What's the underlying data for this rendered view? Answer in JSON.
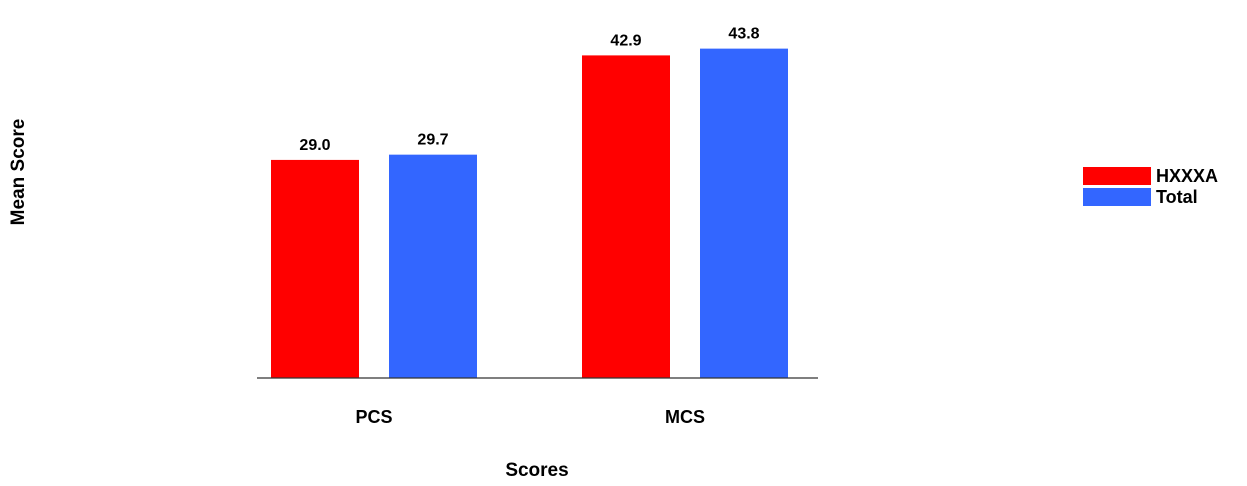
{
  "colors": {
    "HXXXA": "#ff0000",
    "Total": "#3366ff",
    "axis": "#333333",
    "background": "#ffffff"
  },
  "chart_data": {
    "type": "bar",
    "title": "",
    "xlabel": "Scores",
    "ylabel": "Mean Score",
    "categories": [
      "PCS",
      "MCS"
    ],
    "series": [
      {
        "name": "HXXXA",
        "values": [
          29.0,
          42.9
        ],
        "labels": [
          "29.0",
          "42.9"
        ]
      },
      {
        "name": "Total",
        "values": [
          29.7,
          43.8
        ],
        "labels": [
          "29.7",
          "43.8"
        ]
      }
    ],
    "ylim": [
      0,
      45
    ],
    "grid": false,
    "y_axis_visible": false,
    "legend": "right"
  }
}
